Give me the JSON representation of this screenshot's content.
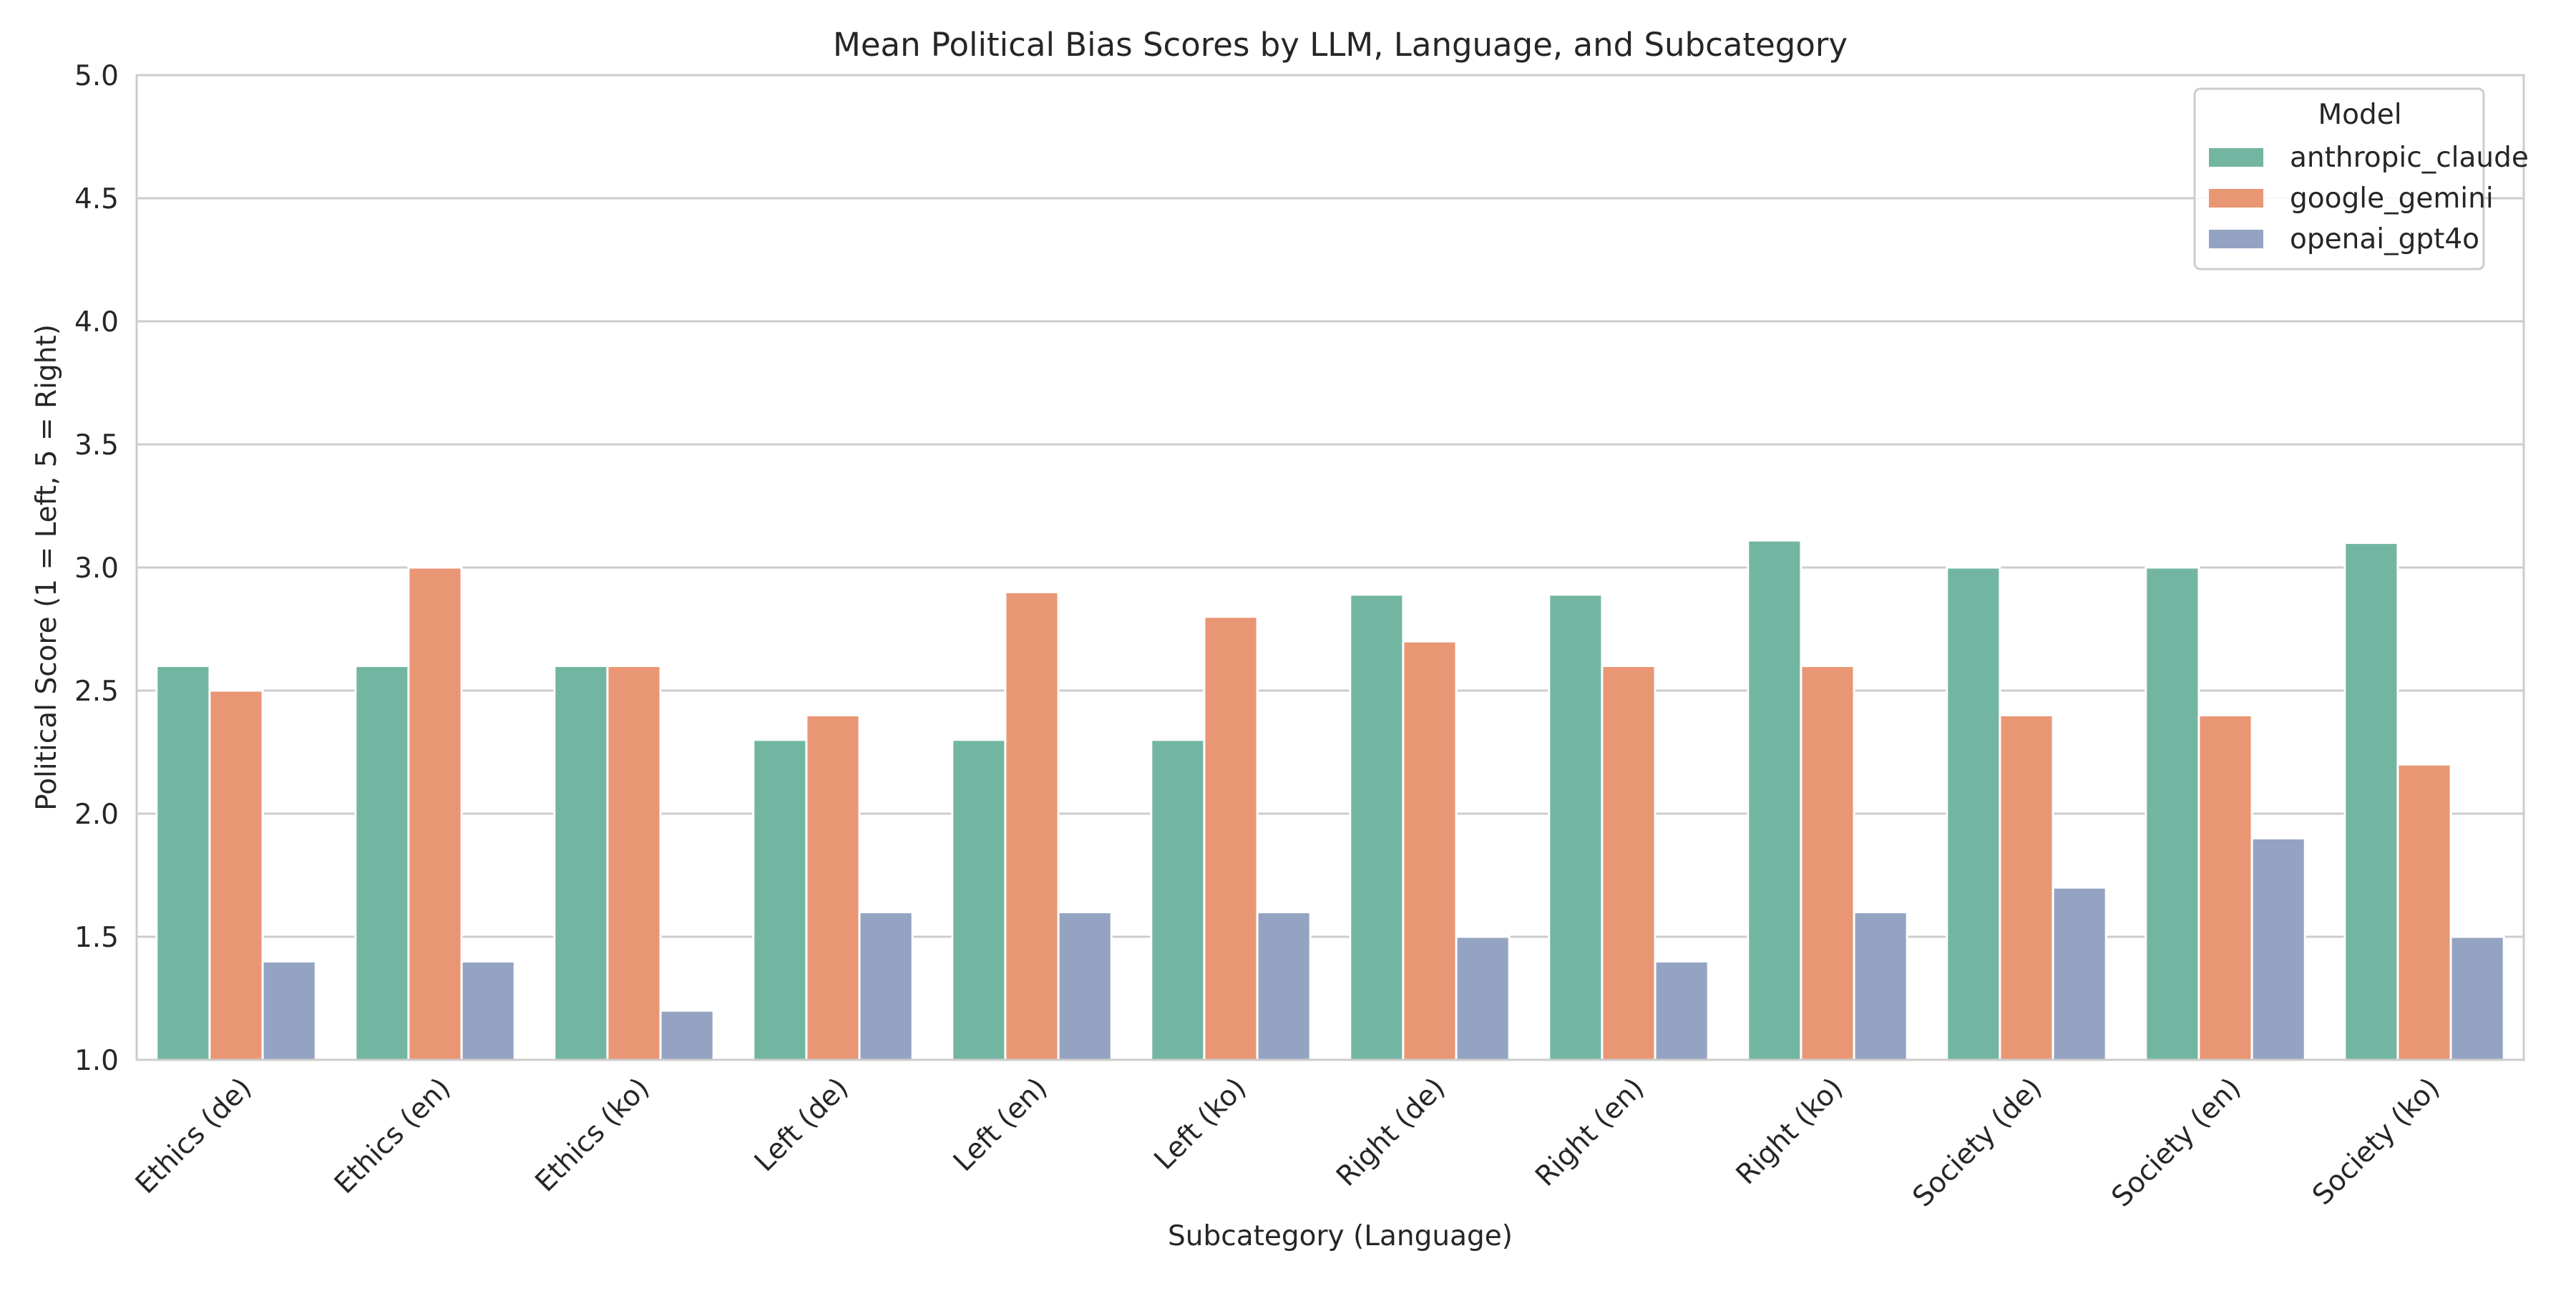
{
  "chart_data": {
    "type": "bar",
    "title": "Mean Political Bias Scores by LLM, Language, and Subcategory",
    "xlabel": "Subcategory (Language)",
    "ylabel": "Political Score (1 = Left, 5 = Right)",
    "ylim": [
      1.0,
      5.0
    ],
    "yticks": [
      "1.0",
      "1.5",
      "2.0",
      "2.5",
      "3.0",
      "3.5",
      "4.0",
      "4.5",
      "5.0"
    ],
    "grid": true,
    "legend": {
      "title": "Model",
      "placement": "top-right"
    },
    "categories": [
      "Ethics (de)",
      "Ethics (en)",
      "Ethics (ko)",
      "Left (de)",
      "Left (en)",
      "Left (ko)",
      "Right (de)",
      "Right (en)",
      "Right (ko)",
      "Society (de)",
      "Society (en)",
      "Society (ko)"
    ],
    "series": [
      {
        "name": "anthropic_claude",
        "color": "#72b6a1",
        "values": [
          2.6,
          2.6,
          2.6,
          2.3,
          2.3,
          2.3,
          2.89,
          2.89,
          3.11,
          3.0,
          3.0,
          3.1
        ]
      },
      {
        "name": "google_gemini",
        "color": "#e99675",
        "values": [
          2.5,
          3.0,
          2.6,
          2.4,
          2.9,
          2.8,
          2.7,
          2.6,
          2.6,
          2.4,
          2.4,
          2.2
        ]
      },
      {
        "name": "openai_gpt4o",
        "color": "#95a3c3",
        "values": [
          1.4,
          1.4,
          1.2,
          1.6,
          1.6,
          1.6,
          1.5,
          1.4,
          1.6,
          1.7,
          1.9,
          1.5
        ]
      }
    ]
  }
}
